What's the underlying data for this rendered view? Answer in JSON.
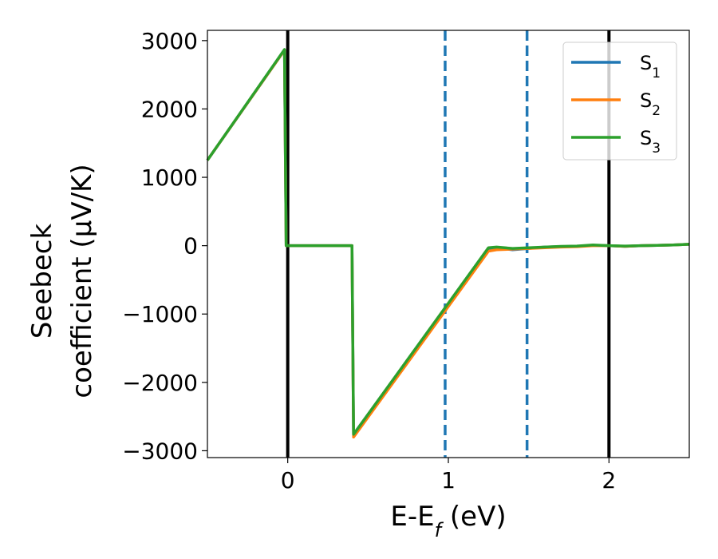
{
  "chart_data": {
    "type": "line",
    "xlabel_main": "E-E",
    "xlabel_sub": "f",
    "xlabel_unit": " (eV)",
    "ylabel_line1": "Seebeck",
    "ylabel_line2": "coefficient  (μV/K)",
    "xlim": [
      -0.5,
      2.5
    ],
    "ylim": [
      -3100,
      3150
    ],
    "x_ticks": [
      0,
      1,
      2
    ],
    "x_tick_labels": [
      "0",
      "1",
      "2"
    ],
    "y_ticks": [
      3000,
      2000,
      1000,
      0,
      -1000,
      -2000,
      -3000
    ],
    "y_tick_labels": [
      "3000",
      "2000",
      "1000",
      "0",
      "−1000",
      "−2000",
      "−3000"
    ],
    "grid": false,
    "legend_position": "top-right",
    "vertical_lines": [
      {
        "x": 0,
        "style": "solid",
        "color": "#000000"
      },
      {
        "x": 2,
        "style": "solid",
        "color": "#000000"
      },
      {
        "x": 0.98,
        "style": "dashed",
        "color": "#1f77b4"
      },
      {
        "x": 1.49,
        "style": "dashed",
        "color": "#1f77b4"
      }
    ],
    "series": [
      {
        "name": "S",
        "sub": "1",
        "color": "#1f77b4",
        "x": [
          -0.5,
          -0.02,
          -0.01,
          0.4,
          0.41,
          1.25,
          1.3,
          1.4,
          1.5,
          1.6,
          1.7,
          1.8,
          1.9,
          2.0,
          2.1,
          2.2,
          2.3,
          2.4,
          2.5
        ],
        "y": [
          1250,
          2860,
          0,
          0,
          -2760,
          -50,
          -30,
          -60,
          -40,
          -20,
          -15,
          -10,
          5,
          0,
          -10,
          0,
          5,
          10,
          20
        ]
      },
      {
        "name": "S",
        "sub": "2",
        "color": "#ff7f0e",
        "x": [
          -0.5,
          -0.02,
          -0.01,
          0.4,
          0.41,
          1.25,
          1.3,
          1.4,
          1.5,
          1.6,
          1.7,
          1.8,
          1.9,
          2.0,
          2.1,
          2.2,
          2.3,
          2.4,
          2.5
        ],
        "y": [
          1250,
          2860,
          0,
          0,
          -2800,
          -80,
          -60,
          -50,
          -40,
          -30,
          -20,
          -15,
          0,
          0,
          -10,
          0,
          5,
          10,
          20
        ]
      },
      {
        "name": "S",
        "sub": "3",
        "color": "#2ca02c",
        "x": [
          -0.5,
          -0.02,
          -0.01,
          0.4,
          0.41,
          1.25,
          1.3,
          1.4,
          1.5,
          1.6,
          1.7,
          1.8,
          1.9,
          2.0,
          2.1,
          2.2,
          2.3,
          2.4,
          2.5
        ],
        "y": [
          1250,
          2870,
          0,
          0,
          -2760,
          -30,
          -20,
          -40,
          -30,
          -20,
          -10,
          -5,
          10,
          0,
          -5,
          0,
          5,
          10,
          20
        ]
      }
    ]
  }
}
